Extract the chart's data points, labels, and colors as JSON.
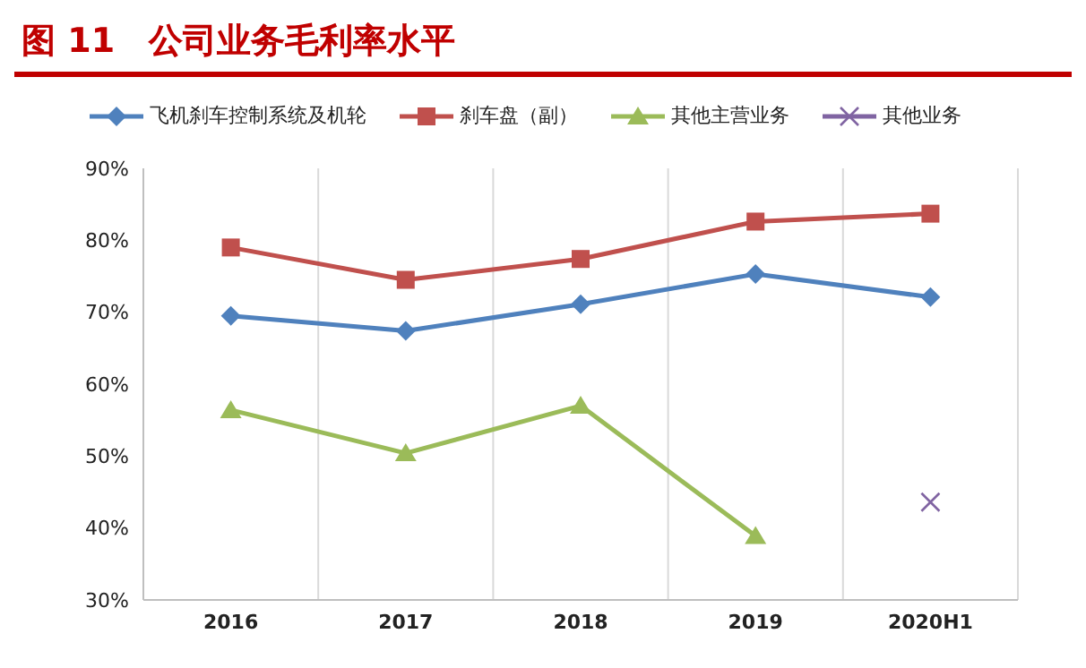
{
  "chart_data": {
    "type": "line",
    "title": "图 11　公司业务毛利率水平",
    "categories": [
      "2016",
      "2017",
      "2018",
      "2019",
      "2020H1"
    ],
    "series": [
      {
        "name": "飞机刹车控制系统及机轮",
        "color": "#4f81bd",
        "marker": "diamond",
        "values": [
          69.5,
          67.4,
          71.1,
          75.3,
          72.1
        ]
      },
      {
        "name": "刹车盘（副）",
        "color": "#c0504d",
        "marker": "square",
        "values": [
          79.0,
          74.5,
          77.4,
          82.6,
          83.7
        ]
      },
      {
        "name": "其他主营业务",
        "color": "#9bbb59",
        "marker": "triangle",
        "values": [
          56.4,
          50.4,
          57.0,
          38.9,
          null
        ]
      },
      {
        "name": "其他业务",
        "color": "#8064a2",
        "marker": "cross",
        "values": [
          null,
          null,
          null,
          null,
          43.6
        ]
      }
    ],
    "ylim": [
      30,
      90
    ],
    "yticks": [
      {
        "value": 30,
        "label": "30%"
      },
      {
        "value": 40,
        "label": "40%"
      },
      {
        "value": 50,
        "label": "50%"
      },
      {
        "value": 60,
        "label": "60%"
      },
      {
        "value": 70,
        "label": "70%"
      },
      {
        "value": 80,
        "label": "80%"
      },
      {
        "value": 90,
        "label": "90%"
      }
    ],
    "grid": "x",
    "legend": "top"
  }
}
